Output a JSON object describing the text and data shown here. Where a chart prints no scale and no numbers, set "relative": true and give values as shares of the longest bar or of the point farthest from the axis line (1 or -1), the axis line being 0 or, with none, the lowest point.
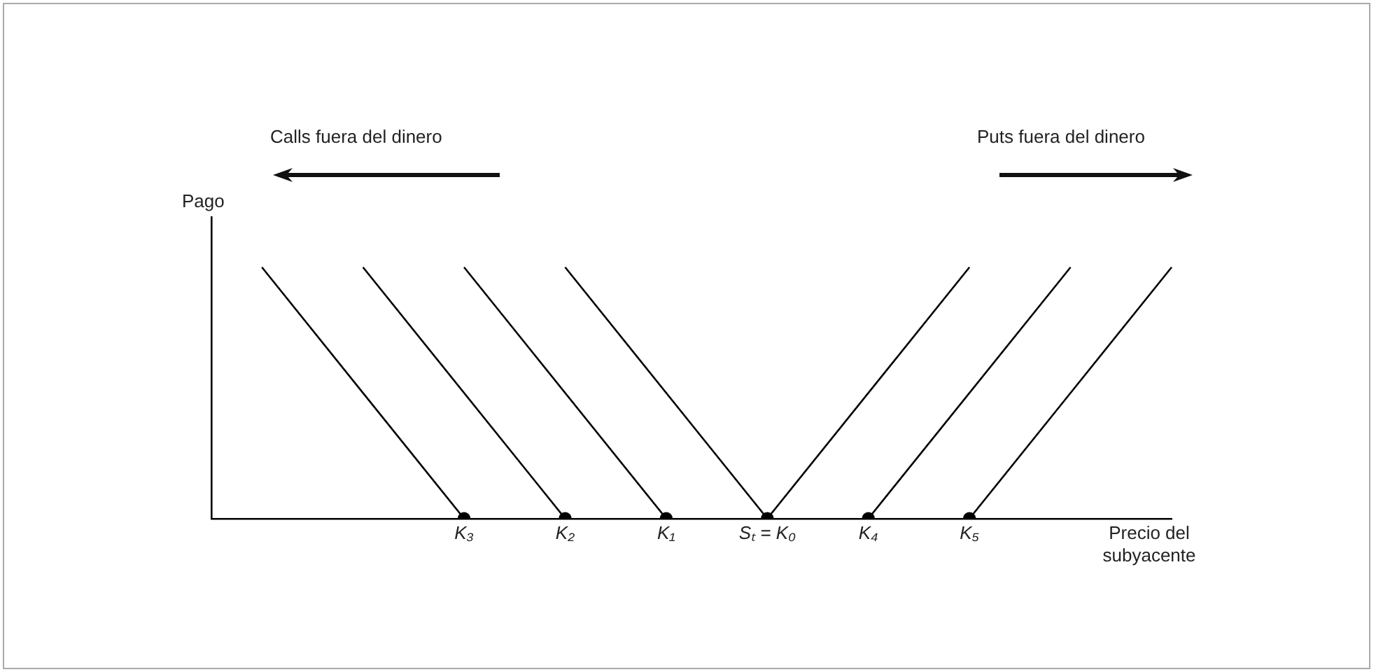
{
  "chart_data": {
    "type": "line",
    "relative": true,
    "ylabel": "Pago",
    "xlabel": "Precio del subyacente",
    "annotations": [
      "Calls fuera del dinero",
      "Puts fuera del dinero"
    ],
    "categories": [
      null,
      null,
      null,
      null,
      null,
      "K₃",
      null,
      "K₂",
      null,
      "K₁",
      null,
      "Sₜ = K₀",
      null,
      "K₄",
      null,
      "K₅",
      null,
      null,
      null,
      null
    ],
    "grid": false,
    "legend": false,
    "marker": "none",
    "line_style": "solid",
    "series": [
      {
        "type": "line",
        "color": "#000000",
        "values": [
          null,
          1,
          null,
          null,
          null,
          0,
          null,
          null,
          null,
          null,
          null,
          null,
          null,
          null,
          null,
          null,
          null,
          null,
          null,
          null
        ]
      },
      {
        "type": "line",
        "color": "#000000",
        "values": [
          null,
          null,
          null,
          1,
          null,
          null,
          null,
          0,
          null,
          null,
          null,
          null,
          null,
          null,
          null,
          null,
          null,
          null,
          null,
          null
        ]
      },
      {
        "type": "line",
        "color": "#000000",
        "values": [
          null,
          null,
          null,
          null,
          null,
          1,
          null,
          null,
          null,
          0,
          null,
          null,
          null,
          null,
          null,
          null,
          null,
          null,
          null,
          null
        ]
      },
      {
        "type": "line",
        "color": "#000000",
        "values": [
          null,
          null,
          null,
          null,
          null,
          null,
          null,
          1,
          null,
          null,
          null,
          0,
          null,
          null,
          null,
          null,
          null,
          null,
          null,
          null
        ]
      },
      {
        "type": "line",
        "color": "#000000",
        "values": [
          null,
          null,
          null,
          null,
          null,
          null,
          null,
          null,
          null,
          null,
          null,
          0,
          null,
          null,
          null,
          1,
          null,
          null,
          null,
          null
        ]
      },
      {
        "type": "line",
        "color": "#000000",
        "values": [
          null,
          null,
          null,
          null,
          null,
          null,
          null,
          null,
          null,
          null,
          null,
          null,
          null,
          0,
          null,
          null,
          null,
          1,
          null,
          null
        ]
      },
      {
        "type": "line",
        "color": "#000000",
        "values": [
          null,
          null,
          null,
          null,
          null,
          null,
          null,
          null,
          null,
          null,
          null,
          null,
          null,
          null,
          null,
          0,
          null,
          null,
          null,
          1
        ]
      },
      {
        "type": "scatter",
        "marker": "circle",
        "color": "#000000",
        "values": [
          null,
          null,
          null,
          null,
          null,
          0,
          null,
          0,
          null,
          0,
          null,
          0,
          null,
          0,
          null,
          0,
          null,
          null,
          null,
          null
        ]
      }
    ]
  }
}
